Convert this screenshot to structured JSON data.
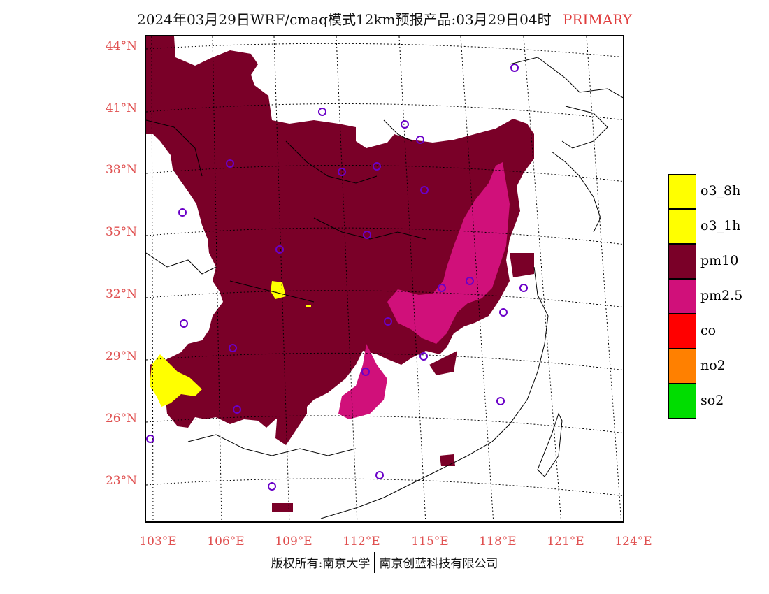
{
  "title": {
    "main": "2024年03月29日WRF/cmaq模式12km预报产品:03月29日04时",
    "tag": "PRIMARY"
  },
  "lat_labels": [
    "44°N",
    "41°N",
    "38°N",
    "35°N",
    "32°N",
    "29°N",
    "26°N",
    "23°N"
  ],
  "lon_labels": [
    "103°E",
    "106°E",
    "109°E",
    "112°E",
    "115°E",
    "118°E",
    "121°E",
    "124°E"
  ],
  "legend": [
    {
      "label": "o3_8h",
      "color": "#ffff00"
    },
    {
      "label": "o3_1h",
      "color": "#ffff00"
    },
    {
      "label": "pm10",
      "color": "#7a0028"
    },
    {
      "label": "pm2.5",
      "color": "#d0107a"
    },
    {
      "label": "co",
      "color": "#ff0000"
    },
    {
      "label": "no2",
      "color": "#ff8000"
    },
    {
      "label": "so2",
      "color": "#00dd00"
    }
  ],
  "footer": {
    "left": "版权所有:南京大学",
    "right": "南京创蓝科技有限公司"
  }
}
